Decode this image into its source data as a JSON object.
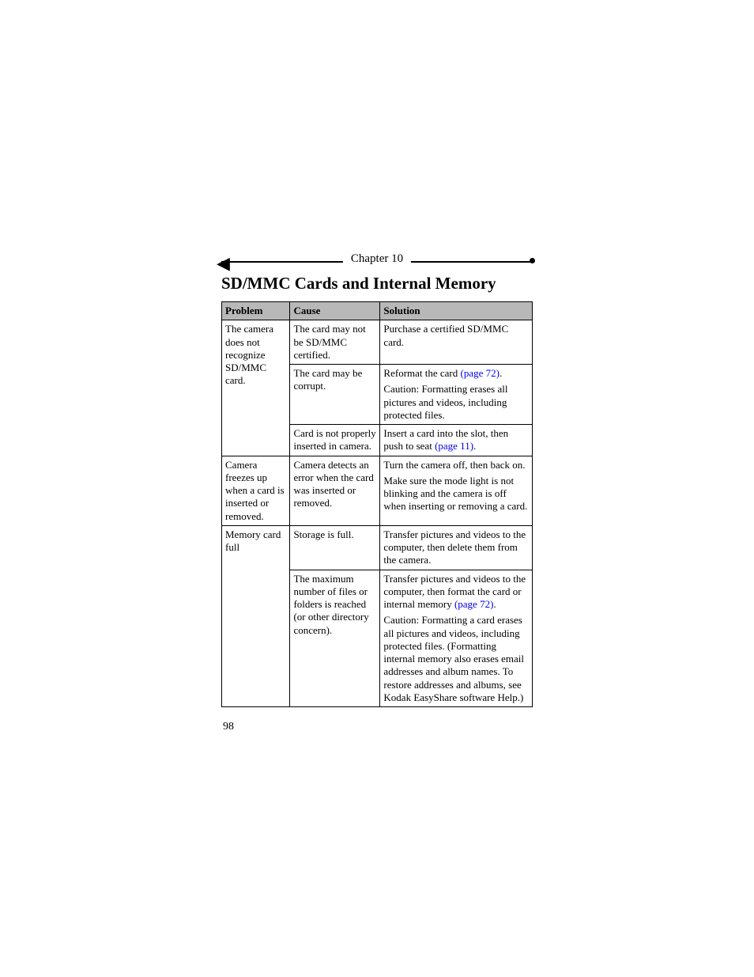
{
  "chapter": "Chapter 10",
  "section_title": "SD/MMC Cards and Internal Memory",
  "columns": {
    "problem": "Problem",
    "cause": "Cause",
    "solution": "Solution"
  },
  "rows": {
    "r1": {
      "problem": "The camera does not recognize SD/MMC card.",
      "c1": {
        "cause": "The card may not be SD/MMC certified.",
        "solution": "Purchase a certified SD/MMC card."
      },
      "c2": {
        "cause": "The card may be corrupt.",
        "solution_a": "Reformat the card ",
        "solution_link": "(page 72)",
        "solution_dot": ".",
        "solution_b": "Caution: Formatting erases all pictures and videos, including protected files."
      },
      "c3": {
        "cause": "Card is not properly inserted in camera.",
        "solution_a": "Insert a card into the slot, then push to seat ",
        "solution_link": "(page 11)",
        "solution_dot": "."
      }
    },
    "r2": {
      "problem": "Camera freezes up when a card is inserted or removed.",
      "cause": "Camera detects an error when the card was inserted or removed.",
      "solution_a": "Turn the camera off, then back on.",
      "solution_b": "Make sure the mode light is not blinking and the camera is off when inserting or removing a card."
    },
    "r3": {
      "problem": "Memory card full",
      "c1": {
        "cause": "Storage is full.",
        "solution": "Transfer pictures and videos to the computer, then delete them from the camera."
      },
      "c2": {
        "cause": "The maximum number of files or folders is reached (or other directory concern).",
        "solution_a": "Transfer pictures and videos to the computer, then format the card or internal memory ",
        "solution_link": "(page 72)",
        "solution_dot": ".",
        "solution_b": "Caution: Formatting a card erases all pictures and videos, including protected files. (Formatting internal memory also erases email addresses and album names. To restore addresses and albums, see Kodak EasyShare software Help.)"
      }
    }
  },
  "page_number": "98"
}
